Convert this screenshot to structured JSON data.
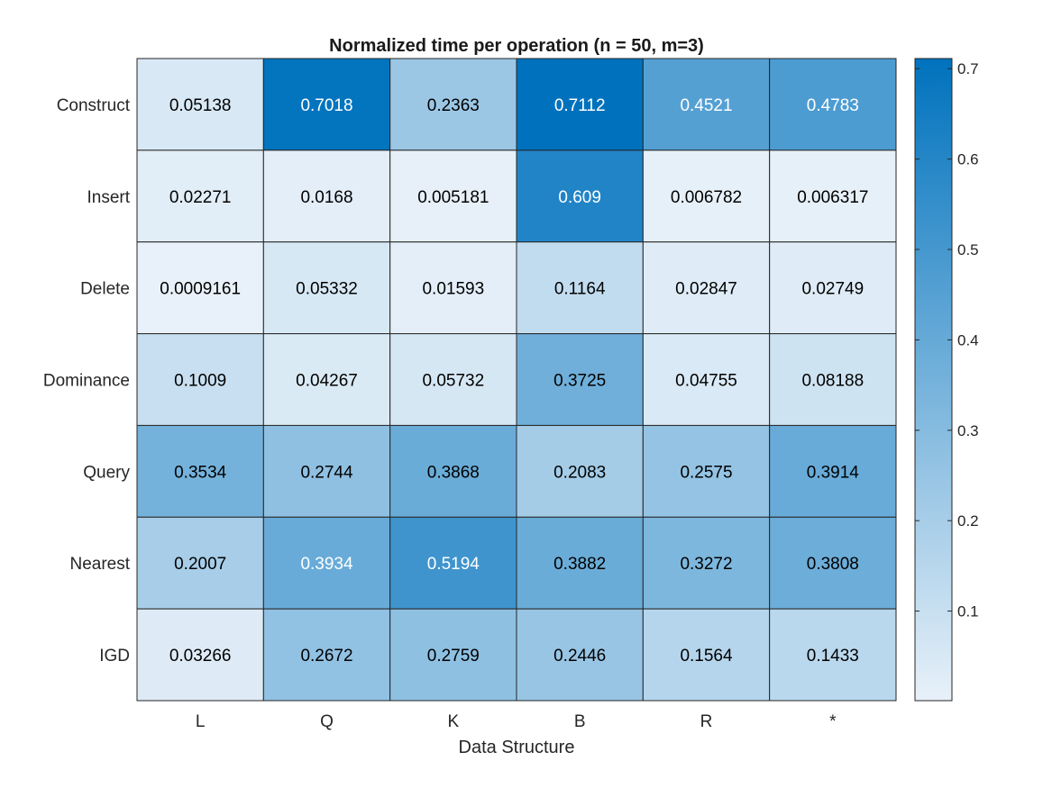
{
  "chart_data": {
    "type": "heatmap",
    "title": "Normalized time per operation (n = 50, m=3)",
    "xlabel": "Data Structure",
    "ylabel": "",
    "x_categories": [
      "L",
      "Q",
      "K",
      "B",
      "R",
      "*"
    ],
    "y_categories": [
      "Construct",
      "Insert",
      "Delete",
      "Dominance",
      "Query",
      "Nearest",
      "IGD"
    ],
    "values": [
      [
        0.05138,
        0.7018,
        0.2363,
        0.7112,
        0.4521,
        0.4783
      ],
      [
        0.02271,
        0.0168,
        0.005181,
        0.609,
        0.006782,
        0.006317
      ],
      [
        0.0009161,
        0.05332,
        0.01593,
        0.1164,
        0.02847,
        0.02749
      ],
      [
        0.1009,
        0.04267,
        0.05732,
        0.3725,
        0.04755,
        0.08188
      ],
      [
        0.3534,
        0.2744,
        0.3868,
        0.2083,
        0.2575,
        0.3914
      ],
      [
        0.2007,
        0.3934,
        0.5194,
        0.3882,
        0.3272,
        0.3808
      ],
      [
        0.03266,
        0.2672,
        0.2759,
        0.2446,
        0.1564,
        0.1433
      ]
    ],
    "value_labels": [
      [
        "0.05138",
        "0.7018",
        "0.2363",
        "0.7112",
        "0.4521",
        "0.4783"
      ],
      [
        "0.02271",
        "0.0168",
        "0.005181",
        "0.609",
        "0.006782",
        "0.006317"
      ],
      [
        "0.0009161",
        "0.05332",
        "0.01593",
        "0.1164",
        "0.02847",
        "0.02749"
      ],
      [
        "0.1009",
        "0.04267",
        "0.05732",
        "0.3725",
        "0.04755",
        "0.08188"
      ],
      [
        "0.3534",
        "0.2744",
        "0.3868",
        "0.2083",
        "0.2575",
        "0.3914"
      ],
      [
        "0.2007",
        "0.3934",
        "0.5194",
        "0.3882",
        "0.3272",
        "0.3808"
      ],
      [
        "0.03266",
        "0.2672",
        "0.2759",
        "0.2446",
        "0.1564",
        "0.1433"
      ]
    ],
    "colorbar": {
      "range": [
        0.0009161,
        0.7112
      ],
      "ticks": [
        0.1,
        0.2,
        0.3,
        0.4,
        0.5,
        0.6,
        0.7
      ],
      "tick_labels": [
        "0.1",
        "0.2",
        "0.3",
        "0.4",
        "0.5",
        "0.6",
        "0.7"
      ],
      "color_low": "#e8f1f9",
      "color_high": "#0072bd",
      "placement": "right"
    },
    "grid": true,
    "light_text_threshold": 0.55,
    "text_color_dark": "#000000",
    "text_color_light": "#ffffff"
  }
}
